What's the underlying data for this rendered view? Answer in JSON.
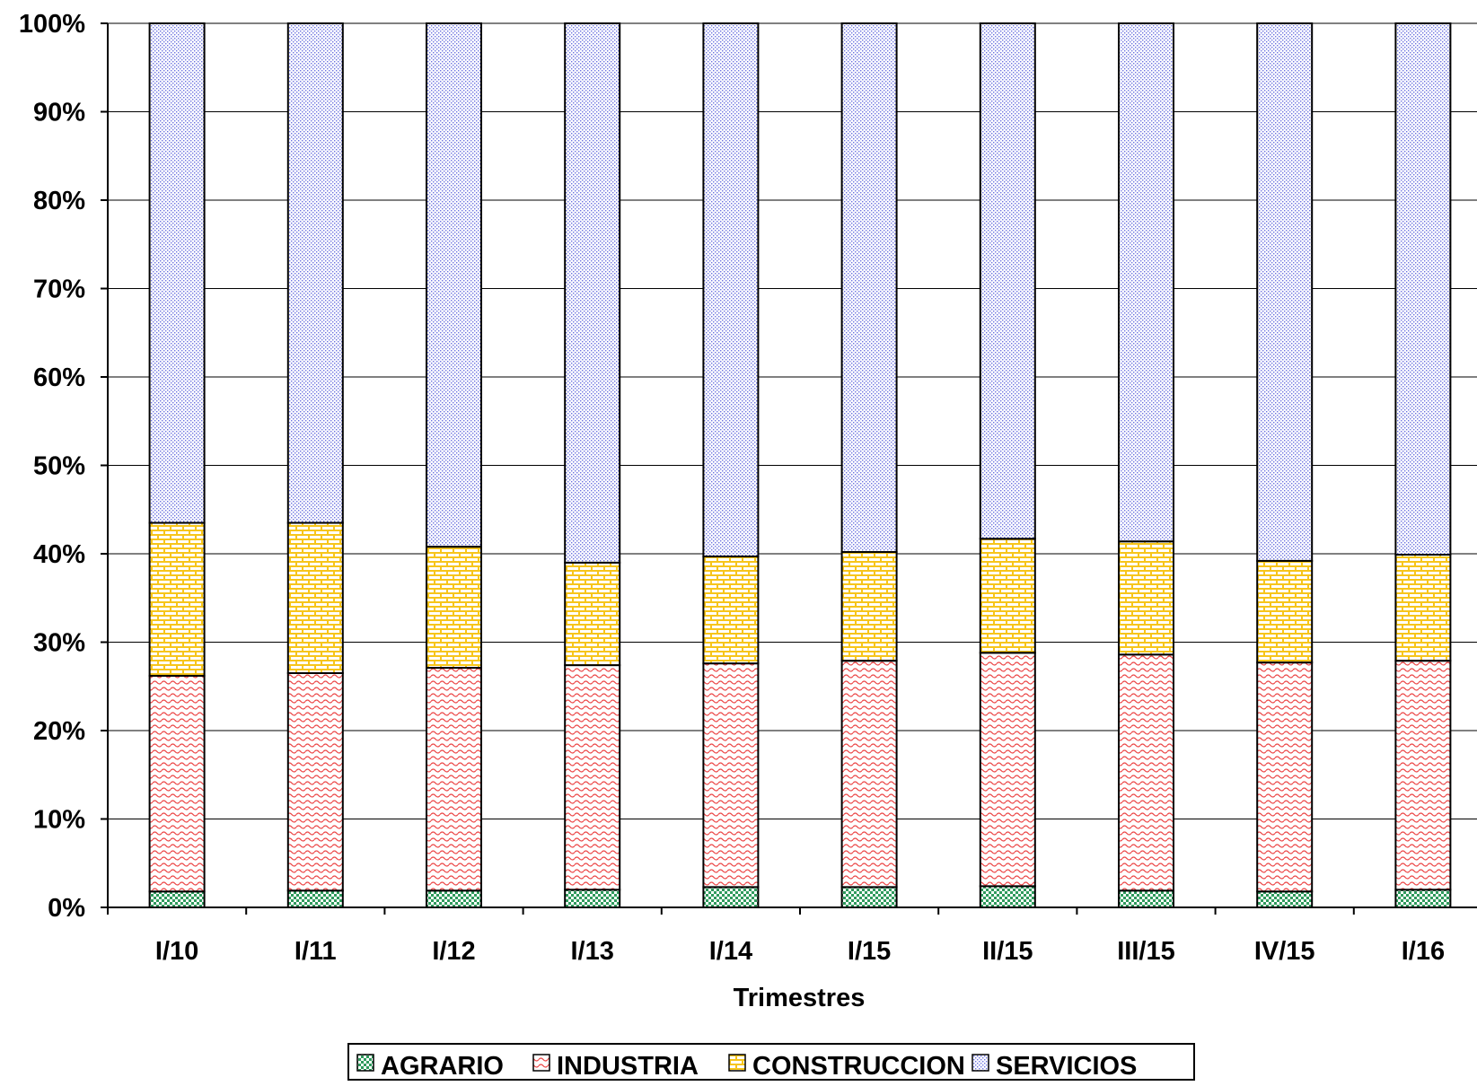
{
  "chart_data": {
    "type": "bar",
    "stacked": true,
    "percent_stacked": true,
    "title": "",
    "xlabel": "Trimestres",
    "ylabel": "",
    "ylim": [
      0,
      100
    ],
    "y_ticks": [
      "0%",
      "10%",
      "20%",
      "30%",
      "40%",
      "50%",
      "60%",
      "70%",
      "80%",
      "90%",
      "100%"
    ],
    "grid": true,
    "legend_position": "bottom",
    "categories": [
      "I/10",
      "I/11",
      "I/12",
      "I/13",
      "I/14",
      "I/15",
      "II/15",
      "III/15",
      "IV/15",
      "I/16"
    ],
    "series": [
      {
        "name": "AGRARIO",
        "color": "#2e9a5c",
        "pattern": "checker",
        "values": [
          1.8,
          1.9,
          1.9,
          2.0,
          2.3,
          2.3,
          2.4,
          1.9,
          1.8,
          2.0
        ]
      },
      {
        "name": "INDUSTRIA",
        "color": "#ec4848",
        "pattern": "wave",
        "values": [
          24.4,
          24.6,
          25.2,
          25.4,
          25.3,
          25.6,
          26.4,
          26.7,
          25.9,
          25.9
        ]
      },
      {
        "name": "CONSTRUCCION",
        "color": "#f7c51b",
        "pattern": "brick",
        "values": [
          17.3,
          17.0,
          13.7,
          11.6,
          12.1,
          12.3,
          12.9,
          12.8,
          11.5,
          12.0
        ]
      },
      {
        "name": "SERVICIOS",
        "color": "#6c73e0",
        "pattern": "dots",
        "values": [
          56.5,
          56.5,
          59.2,
          61.0,
          60.3,
          59.8,
          58.3,
          58.6,
          60.8,
          60.1
        ]
      }
    ]
  }
}
